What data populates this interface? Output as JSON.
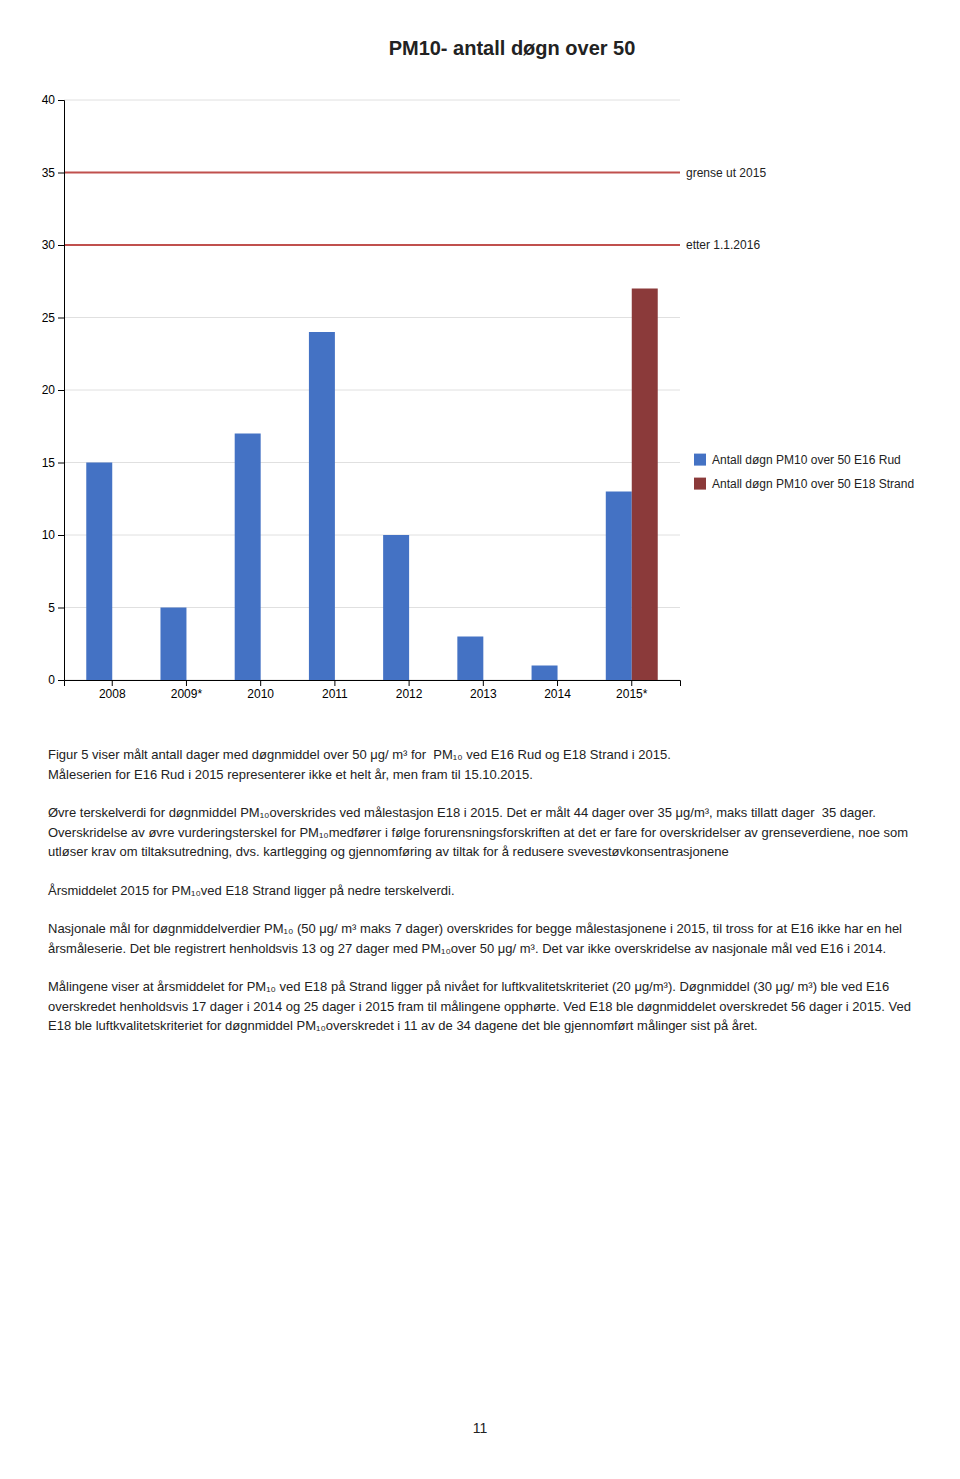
{
  "chart_data": {
    "type": "bar",
    "title": "PM10- antall døgn over 50",
    "categories": [
      "2008",
      "2009*",
      "2010",
      "2011",
      "2012",
      "2013",
      "2014",
      "2015*"
    ],
    "series": [
      {
        "name": "Antall døgn PM10 over 50 E16 Rud",
        "color": "#4472C4",
        "values": [
          15,
          5,
          17,
          24,
          10,
          3,
          1,
          13
        ]
      },
      {
        "name": "Antall døgn PM10 over 50 E18 Strand",
        "color": "#8B3A3A",
        "values": [
          0,
          0,
          0,
          0,
          0,
          0,
          0,
          27
        ]
      }
    ],
    "reference_lines": [
      {
        "value": 35,
        "label": "grense ut 2015",
        "color": "#C0504D"
      },
      {
        "value": 30,
        "label": "etter 1.1.2016",
        "color": "#C0504D"
      }
    ],
    "ylim": [
      0,
      40
    ],
    "yticks": [
      0,
      5,
      10,
      15,
      20,
      25,
      30,
      35,
      40
    ],
    "grid": true,
    "legend": "right"
  },
  "body_text": [
    "Figur 5 viser målt antall dager med døgnmiddel over 50 μg/ m³ for  PM₁₀ ved E16 Rud og E18 Strand i 2015.\nMåleserien for E16 Rud i 2015 representerer ikke et helt år, men fram til 15.10.2015.",
    "Øvre terskelverdi for døgnmiddel PM₁₀overskrides ved målestasjon E18 i 2015. Det er målt 44 dager over 35 μg/m³, maks tillatt dager  35 dager. Overskridelse av øvre vurderingsterskel for PM₁₀medfører i følge forurensningsforskriften at det er fare for overskridelser av grenseverdiene, noe som utløser krav om tiltaksutredning, dvs. kartlegging og gjennomføring av tiltak for å redusere svevestøvkonsentrasjonene",
    "Årsmiddelet 2015 for PM₁₀ved E18 Strand ligger på nedre terskelverdi.",
    "Nasjonale mål for døgnmiddelverdier PM₁₀ (50 μg/ m³ maks 7 dager) overskrides for begge målestasjonene i 2015, til tross for at E16 ikke har en hel årsmåleserie. Det ble registrert henholdsvis 13 og 27 dager med PM₁₀over 50 μg/ m³. Det var ikke overskridelse av nasjonale mål ved E16 i 2014.",
    "Målingene viser at årsmiddelet for PM₁₀ ved E18 på Strand ligger på nivået for luftkvalitetskriteriet (20 μg/m³). Døgnmiddel (30 μg/ m³) ble ved E16 overskredet henholdsvis 17 dager i 2014 og 25 dager i 2015 fram til målingene opphørte. Ved E18 ble døgnmiddelet overskredet 56 dager i 2015. Ved E18 ble luftkvalitetskriteriet for døgnmiddel PM₁₀overskredet i 11 av de 34 dagene det ble gjennomført målinger sist på året."
  ],
  "page_number": "11"
}
